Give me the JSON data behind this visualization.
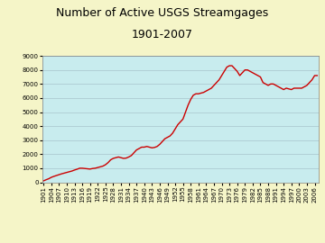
{
  "title_line1": "Number of Active USGS Streamgages",
  "title_line2": "1901-2007",
  "background_color": "#F5F5C8",
  "plot_bg_color": "#C8ECEE",
  "line_color": "#CC0000",
  "grid_color": "#A8C4CC",
  "ylim": [
    0,
    9000
  ],
  "yticks": [
    0,
    1000,
    2000,
    3000,
    4000,
    5000,
    6000,
    7000,
    8000,
    9000
  ],
  "xlim": [
    1901,
    2007
  ],
  "years": [
    1901,
    1902,
    1903,
    1904,
    1905,
    1906,
    1907,
    1908,
    1909,
    1910,
    1911,
    1912,
    1913,
    1914,
    1915,
    1916,
    1917,
    1918,
    1919,
    1920,
    1921,
    1922,
    1923,
    1924,
    1925,
    1926,
    1927,
    1928,
    1929,
    1930,
    1931,
    1932,
    1933,
    1934,
    1935,
    1936,
    1937,
    1938,
    1939,
    1940,
    1941,
    1942,
    1943,
    1944,
    1945,
    1946,
    1947,
    1948,
    1949,
    1950,
    1951,
    1952,
    1953,
    1954,
    1955,
    1956,
    1957,
    1958,
    1959,
    1960,
    1961,
    1962,
    1963,
    1964,
    1965,
    1966,
    1967,
    1968,
    1969,
    1970,
    1971,
    1972,
    1973,
    1974,
    1975,
    1976,
    1977,
    1978,
    1979,
    1980,
    1981,
    1982,
    1983,
    1984,
    1985,
    1986,
    1987,
    1988,
    1989,
    1990,
    1991,
    1992,
    1993,
    1994,
    1995,
    1996,
    1997,
    1998,
    1999,
    2000,
    2001,
    2002,
    2003,
    2004,
    2005,
    2006,
    2007
  ],
  "values": [
    100,
    180,
    250,
    350,
    420,
    480,
    540,
    600,
    650,
    700,
    750,
    800,
    870,
    930,
    1000,
    1000,
    980,
    960,
    940,
    980,
    1000,
    1050,
    1100,
    1150,
    1250,
    1400,
    1600,
    1700,
    1750,
    1800,
    1750,
    1700,
    1720,
    1800,
    1900,
    2100,
    2300,
    2400,
    2500,
    2500,
    2550,
    2500,
    2450,
    2480,
    2550,
    2700,
    2900,
    3100,
    3200,
    3300,
    3500,
    3800,
    4100,
    4300,
    4500,
    5000,
    5500,
    5900,
    6200,
    6300,
    6300,
    6350,
    6400,
    6500,
    6600,
    6700,
    6900,
    7100,
    7300,
    7600,
    7900,
    8200,
    8300,
    8300,
    8100,
    7900,
    7600,
    7800,
    8000,
    8000,
    7900,
    7800,
    7700,
    7600,
    7500,
    7100,
    7000,
    6900,
    7000,
    7000,
    6900,
    6800,
    6700,
    6600,
    6700,
    6650,
    6600,
    6700,
    6700,
    6700,
    6700,
    6800,
    6900,
    7100,
    7300,
    7600,
    7600
  ],
  "title_fontsize": 9,
  "tick_fontsize": 5,
  "line_width": 1.0
}
